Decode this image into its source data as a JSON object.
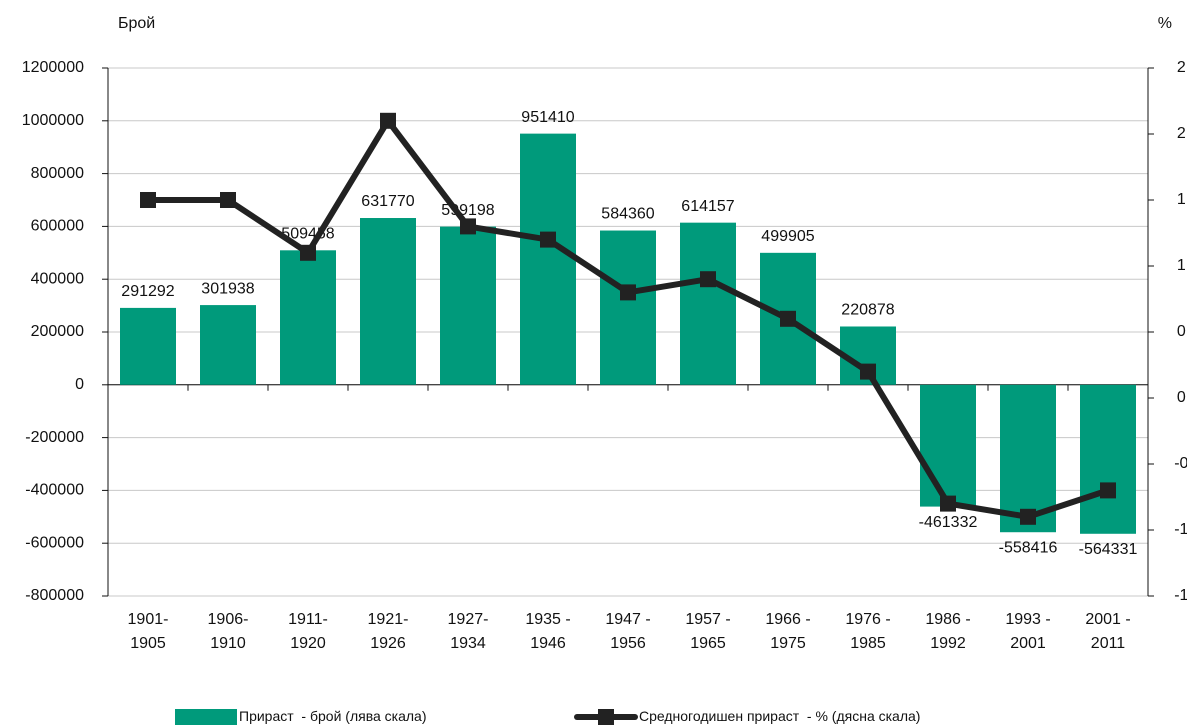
{
  "chart_data": {
    "type": "bar-line",
    "y_label": "Брой",
    "y2_label": "%",
    "categories": [
      "1901-\n1905",
      "1906-\n1910",
      "1911-\n1920",
      "1921-\n1926",
      "1927-\n1934",
      "1935 -\n1946",
      "1947 -\n1956",
      "1957 -\n1965",
      "1966 -\n1975",
      "1976 -\n1985",
      "1986 -\n1992",
      "1993 -\n2001",
      "2001 -\n2011"
    ],
    "series": [
      {
        "name": "Прираст  - брой (лява скала)",
        "type": "bar",
        "color": "#009a7b",
        "values": [
          291292,
          301938,
          509458,
          631770,
          599198,
          951410,
          584360,
          614157,
          499905,
          220878,
          -461332,
          -558416,
          -564331
        ]
      },
      {
        "name": "Средногодишен прираст  - % (дясна скала)",
        "type": "line",
        "axis": "y2",
        "color": "#222222",
        "values": [
          1.5,
          1.5,
          1.1,
          2.1,
          1.3,
          1.2,
          0.8,
          0.9,
          0.6,
          0.2,
          -0.8,
          -0.9,
          -0.7
        ]
      }
    ],
    "ylim": [
      -800000,
      1200000
    ],
    "yticks": [
      -800000,
      -600000,
      -400000,
      -200000,
      0,
      200000,
      400000,
      600000,
      800000,
      1000000,
      1200000
    ],
    "y2lim": [
      -1.5,
      2.5
    ],
    "y2ticks": [
      -1.5,
      {
        "value": -1,
        "label": "-1.0"
      },
      -0.5,
      {
        "value": 0,
        "label": "0.0"
      },
      0.5,
      {
        "value": 1,
        "label": "1.0"
      },
      1.5,
      {
        "value": 2,
        "label": "2.0"
      },
      2.5
    ],
    "grid": true
  }
}
